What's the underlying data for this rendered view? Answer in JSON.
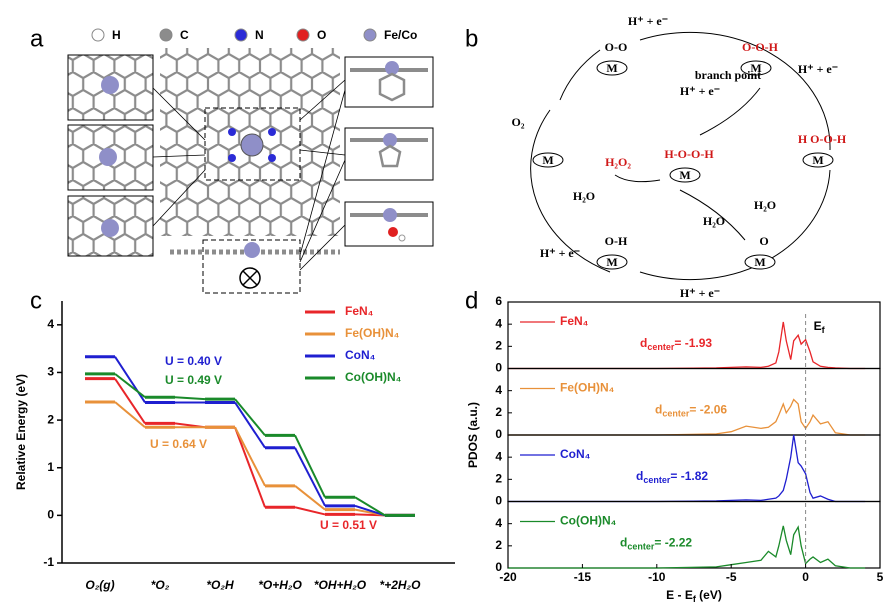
{
  "panel_labels": [
    "a",
    "b",
    "c",
    "d"
  ],
  "structure": {
    "legend": [
      "H",
      "C",
      "N",
      "O",
      "Fe/Co"
    ],
    "legend_colors": [
      "#ffffff",
      "#8c8c8c",
      "#2b2bd6",
      "#e02020",
      "#8f8fc8"
    ]
  },
  "cycle": {
    "nodes": [
      {
        "metal": "M",
        "adsorbate": "O-O"
      },
      {
        "metal": "M",
        "adsorbate": "O-O-H"
      },
      {
        "metal": "M",
        "adsorbate": "H O-O-H"
      },
      {
        "metal": "M",
        "adsorbate": "H-O-O-H"
      },
      {
        "metal": "M",
        "adsorbate": "O"
      },
      {
        "metal": "M",
        "adsorbate": "O-H"
      },
      {
        "metal": "M",
        "adsorbate": ""
      }
    ],
    "labels": [
      "H⁺ + e⁻",
      "branch point",
      "H⁺ + e⁻",
      "H⁺ + e⁻",
      "O₂",
      "H₂O₂",
      "H₂O",
      "H₂O",
      "H₂O",
      "H⁺ + e⁻",
      "H⁺ + e⁻"
    ]
  },
  "chart_data": [
    {
      "type": "line",
      "ylabel": "Relative Energy (eV)",
      "categories": [
        "O₂(g)",
        "*O₂",
        "*O₂H",
        "*O+H₂O",
        "*OH+H₂O",
        "*+2H₂O"
      ],
      "series": [
        {
          "name": "FeN₄",
          "color": "#e8262a",
          "values": [
            2.87,
            1.93,
            1.85,
            0.17,
            0.02,
            0
          ]
        },
        {
          "name": "Fe(OH)N₄",
          "color": "#e8913a",
          "values": [
            2.38,
            1.85,
            1.85,
            0.62,
            0.12,
            0
          ]
        },
        {
          "name": "CoN₄",
          "color": "#1f1fd0",
          "values": [
            3.33,
            2.37,
            2.37,
            1.42,
            0.2,
            0
          ]
        },
        {
          "name": "Co(OH)N₄",
          "color": "#1a8a2a",
          "values": [
            2.97,
            2.48,
            2.44,
            1.68,
            0.38,
            0
          ]
        }
      ],
      "annotations": [
        {
          "text": "U = 0.40 V",
          "color": "#1f1fd0"
        },
        {
          "text": "U = 0.49 V",
          "color": "#1a8a2a"
        },
        {
          "text": "U = 0.64 V",
          "color": "#e8913a"
        },
        {
          "text": "U = 0.51 V",
          "color": "#e8262a"
        }
      ],
      "ylim": [
        -1,
        4.5
      ],
      "yticks": [
        -1,
        0,
        1,
        2,
        3,
        4
      ]
    },
    {
      "type": "pdos",
      "ylabel": "PDOS (a.u.)",
      "xlabel": {
        "main": "E - E",
        "sub": "f",
        "rest": " (eV)"
      },
      "fermi_label": {
        "main": "E",
        "sub": "f"
      },
      "x": [
        -20,
        -10,
        -6,
        -5,
        -4,
        -3,
        -2.5,
        -2,
        -1.8,
        -1.5,
        -1.3,
        -1,
        -0.8,
        -0.5,
        -0.3,
        0,
        0.3,
        0.5,
        1,
        1.5,
        2,
        3,
        4
      ],
      "xlim": [
        -20,
        5
      ],
      "xticks": [
        -20,
        -15,
        -10,
        -5,
        0,
        5
      ],
      "ylim": [
        0,
        6
      ],
      "series": [
        {
          "name": "FeN₄",
          "color": "#e8262a",
          "yticks": [
            0,
            2,
            4,
            6
          ],
          "values": [
            0,
            0,
            0.05,
            0.1,
            0.15,
            0.1,
            0.2,
            0.5,
            1.5,
            4.2,
            2.5,
            0.8,
            2.5,
            3.0,
            2.2,
            2.6,
            1.5,
            0.6,
            0.2,
            0.1,
            0.05,
            0,
            0
          ],
          "annotation": {
            "main": "d",
            "sub": "center",
            "rest": "= -1.93"
          }
        },
        {
          "name": "Fe(OH)N₄",
          "color": "#e8913a",
          "yticks": [
            0,
            2,
            4
          ],
          "values": [
            0,
            0,
            0.1,
            0.3,
            0.8,
            0.6,
            0.7,
            1.2,
            1.8,
            2.8,
            2.0,
            2.6,
            3.2,
            2.8,
            1.2,
            0.6,
            1.2,
            1.8,
            1.0,
            1.2,
            0.2,
            0,
            0
          ],
          "annotation": {
            "main": "d",
            "sub": "center",
            "rest": "= -2.06"
          }
        },
        {
          "name": "CoN₄",
          "color": "#1f1fd0",
          "yticks": [
            0,
            2,
            4
          ],
          "values": [
            0,
            0,
            0.05,
            0.1,
            0.15,
            0.1,
            0.2,
            0.3,
            0.5,
            1.0,
            2.0,
            4.0,
            6.0,
            3.5,
            3.2,
            2.5,
            0.8,
            0.3,
            0.5,
            0.2,
            0,
            0,
            0
          ],
          "annotation": {
            "main": "d",
            "sub": "center",
            "rest": "= -1.82"
          }
        },
        {
          "name": "Co(OH)N₄",
          "color": "#1a8a2a",
          "yticks": [
            0,
            2,
            4
          ],
          "values": [
            0,
            0,
            0.1,
            0.3,
            0.5,
            0.7,
            1.5,
            1.0,
            2.0,
            3.8,
            2.5,
            1.2,
            3.0,
            3.7,
            2.0,
            0.4,
            0.8,
            1.0,
            0.5,
            0.8,
            0.2,
            0,
            0
          ],
          "annotation": {
            "main": "d",
            "sub": "center",
            "rest": "= -2.22"
          }
        }
      ]
    }
  ]
}
